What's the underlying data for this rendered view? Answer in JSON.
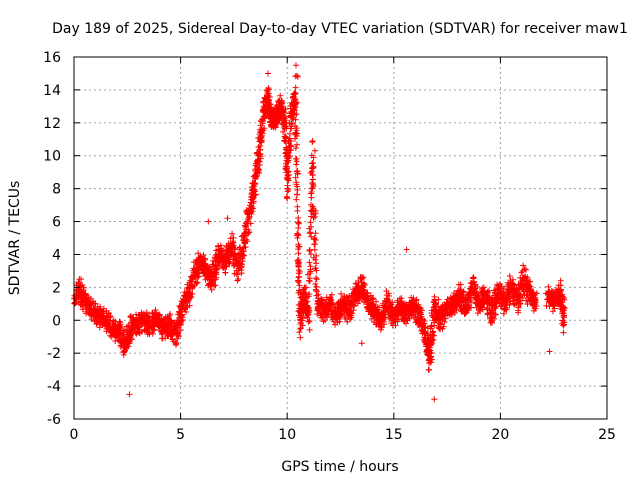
{
  "chart_data": {
    "type": "scatter",
    "title": "Day 189 of 2025, Sidereal Day-to-day VTEC variation (SDTVAR) for receiver maw1",
    "xlabel": "GPS time / hours",
    "ylabel": "SDTVAR / TECUs",
    "xlim": [
      0,
      25
    ],
    "ylim": [
      -6,
      16
    ],
    "xticks": [
      0,
      5,
      10,
      15,
      20,
      25
    ],
    "yticks": [
      -6,
      -4,
      -2,
      0,
      2,
      4,
      6,
      8,
      10,
      12,
      14,
      16
    ],
    "xtick_labels": [
      "0",
      "5",
      "10",
      "15",
      "20",
      "25"
    ],
    "ytick_labels": [
      "-6",
      "-4",
      "-2",
      "0",
      "2",
      "4",
      "6",
      "8",
      "10",
      "12",
      "14",
      "16"
    ],
    "grid": true,
    "marker": "+",
    "color": "#ff0000",
    "series": [
      {
        "name": "maw1",
        "trend": [
          [
            0.0,
            1.2
          ],
          [
            0.3,
            1.8
          ],
          [
            0.6,
            1.0
          ],
          [
            0.9,
            0.5
          ],
          [
            1.2,
            0.2
          ],
          [
            1.5,
            0.0
          ],
          [
            1.8,
            -0.5
          ],
          [
            2.1,
            -0.8
          ],
          [
            2.4,
            -1.5
          ],
          [
            2.7,
            -0.4
          ],
          [
            3.0,
            -0.2
          ],
          [
            3.3,
            0.0
          ],
          [
            3.6,
            -0.3
          ],
          [
            3.9,
            0.1
          ],
          [
            4.2,
            -0.5
          ],
          [
            4.5,
            -0.3
          ],
          [
            4.8,
            -0.8
          ],
          [
            5.0,
            0.5
          ],
          [
            5.3,
            1.2
          ],
          [
            5.6,
            2.5
          ],
          [
            5.9,
            3.5
          ],
          [
            6.2,
            3.0
          ],
          [
            6.5,
            2.5
          ],
          [
            6.8,
            4.0
          ],
          [
            7.1,
            3.5
          ],
          [
            7.4,
            4.5
          ],
          [
            7.7,
            3.0
          ],
          [
            8.0,
            5.0
          ],
          [
            8.3,
            7.0
          ],
          [
            8.5,
            8.5
          ],
          [
            8.7,
            10.5
          ],
          [
            8.9,
            12.5
          ],
          [
            9.1,
            13.5
          ],
          [
            9.3,
            12.0
          ],
          [
            9.5,
            12.5
          ],
          [
            9.7,
            13.0
          ],
          [
            9.9,
            12.0
          ],
          [
            10.0,
            8.5
          ],
          [
            10.2,
            12.5
          ],
          [
            10.4,
            13.5
          ],
          [
            10.5,
            5.0
          ],
          [
            10.6,
            0.0
          ],
          [
            10.8,
            1.5
          ],
          [
            11.0,
            0.5
          ],
          [
            11.2,
            9.5
          ],
          [
            11.4,
            1.0
          ],
          [
            11.7,
            0.5
          ],
          [
            12.0,
            1.0
          ],
          [
            12.3,
            0.3
          ],
          [
            12.6,
            1.0
          ],
          [
            12.9,
            0.5
          ],
          [
            13.2,
            1.5
          ],
          [
            13.5,
            2.0
          ],
          [
            13.8,
            1.0
          ],
          [
            14.1,
            0.5
          ],
          [
            14.4,
            0.0
          ],
          [
            14.7,
            1.0
          ],
          [
            15.0,
            0.3
          ],
          [
            15.3,
            0.8
          ],
          [
            15.6,
            0.5
          ],
          [
            15.9,
            1.0
          ],
          [
            16.2,
            0.2
          ],
          [
            16.5,
            -1.0
          ],
          [
            16.7,
            -2.5
          ],
          [
            16.9,
            1.0
          ],
          [
            17.2,
            0.0
          ],
          [
            17.5,
            0.5
          ],
          [
            17.8,
            1.0
          ],
          [
            18.1,
            1.5
          ],
          [
            18.4,
            0.8
          ],
          [
            18.7,
            2.0
          ],
          [
            19.0,
            1.0
          ],
          [
            19.3,
            1.5
          ],
          [
            19.6,
            0.5
          ],
          [
            19.9,
            1.8
          ],
          [
            20.2,
            1.0
          ],
          [
            20.5,
            2.0
          ],
          [
            20.8,
            1.2
          ],
          [
            21.1,
            2.5
          ],
          [
            21.4,
            1.5
          ],
          [
            21.7,
            1.0
          ],
          [
            22.0,
            null
          ],
          [
            22.2,
            1.5
          ],
          [
            22.5,
            1.2
          ],
          [
            22.8,
            1.5
          ],
          [
            23.0,
            0.0
          ]
        ],
        "outliers": [
          [
            2.6,
            -4.5
          ],
          [
            16.9,
            -4.8
          ],
          [
            15.6,
            4.3
          ],
          [
            22.3,
            -1.9
          ],
          [
            13.5,
            -1.4
          ],
          [
            9.1,
            15.0
          ],
          [
            10.5,
            14.8
          ],
          [
            11.3,
            10.3
          ],
          [
            6.3,
            6.0
          ],
          [
            7.2,
            6.2
          ]
        ]
      }
    ]
  }
}
